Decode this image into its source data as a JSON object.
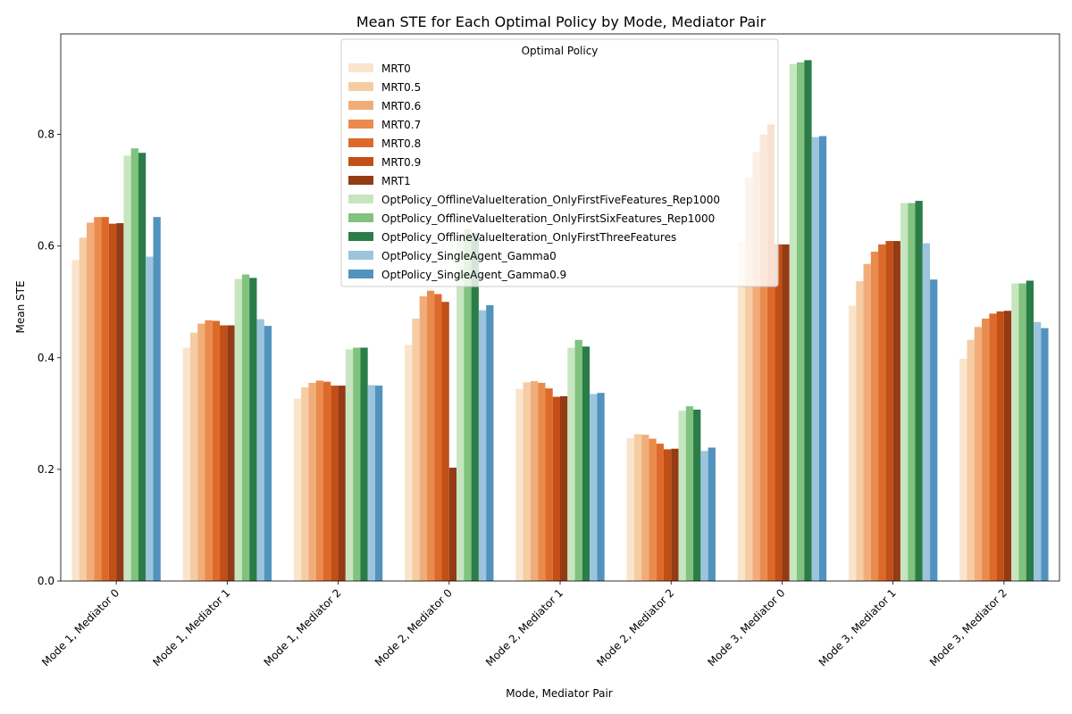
{
  "chart_data": {
    "type": "bar",
    "title": "Mean STE for Each Optimal Policy by Mode, Mediator Pair",
    "xlabel": "Mode, Mediator Pair",
    "ylabel": "Mean STE",
    "ylim": [
      0,
      0.98
    ],
    "yticks": [
      0.0,
      0.2,
      0.4,
      0.6,
      0.8
    ],
    "ytick_labels": [
      "0.0",
      "0.2",
      "0.4",
      "0.6",
      "0.8"
    ],
    "grid": false,
    "categories": [
      "Mode 1, Mediator 0",
      "Mode 1, Mediator 1",
      "Mode 1, Mediator 2",
      "Mode 2, Mediator 0",
      "Mode 2, Mediator 1",
      "Mode 2, Mediator 2",
      "Mode 3, Mediator 0",
      "Mode 3, Mediator 1",
      "Mode 3, Mediator 2"
    ],
    "legend": {
      "title": "Optimal Policy",
      "position": "upper center"
    },
    "series": [
      {
        "name": "MRT0",
        "color": "#fbe4cc",
        "values": [
          0.575,
          0.418,
          0.327,
          0.423,
          0.344,
          0.256,
          0.607,
          0.493,
          0.398
        ]
      },
      {
        "name": "MRT0.5",
        "color": "#f6cca3",
        "values": [
          0.615,
          0.445,
          0.347,
          0.47,
          0.356,
          0.263,
          0.723,
          0.537,
          0.432
        ]
      },
      {
        "name": "MRT0.6",
        "color": "#f1ad79",
        "values": [
          0.642,
          0.461,
          0.355,
          0.51,
          0.358,
          0.262,
          0.768,
          0.568,
          0.455
        ]
      },
      {
        "name": "MRT0.7",
        "color": "#ea8b4e",
        "values": [
          0.652,
          0.467,
          0.359,
          0.52,
          0.355,
          0.255,
          0.8,
          0.59,
          0.47
        ]
      },
      {
        "name": "MRT0.8",
        "color": "#dd6a2b",
        "values": [
          0.652,
          0.466,
          0.357,
          0.514,
          0.345,
          0.246,
          0.818,
          0.603,
          0.479
        ]
      },
      {
        "name": "MRT0.9",
        "color": "#c24f15",
        "values": [
          0.64,
          0.458,
          0.35,
          0.5,
          0.33,
          0.236,
          0.603,
          0.609,
          0.483
        ]
      },
      {
        "name": "MRT1",
        "color": "#943b16",
        "values": [
          0.641,
          0.458,
          0.35,
          0.203,
          0.331,
          0.237,
          0.603,
          0.609,
          0.484
        ]
      },
      {
        "name": "OptPolicy_OfflineValueIteration_OnlyFirstFiveFeatures_Rep1000",
        "color": "#c7e6c0",
        "values": [
          0.762,
          0.541,
          0.415,
          0.617,
          0.418,
          0.305,
          0.926,
          0.677,
          0.533
        ]
      },
      {
        "name": "OptPolicy_OfflineValueIteration_OnlyFirstSixFeatures_Rep1000",
        "color": "#80c27e",
        "values": [
          0.775,
          0.549,
          0.418,
          0.63,
          0.432,
          0.313,
          0.929,
          0.677,
          0.533
        ]
      },
      {
        "name": "OptPolicy_OfflineValueIteration_OnlyFirstThreeFeatures",
        "color": "#2b7d48",
        "values": [
          0.767,
          0.543,
          0.418,
          0.623,
          0.42,
          0.307,
          0.933,
          0.681,
          0.538
        ]
      },
      {
        "name": "OptPolicy_SingleAgent_Gamma0",
        "color": "#9cc5dd",
        "values": [
          0.581,
          0.469,
          0.351,
          0.485,
          0.335,
          0.233,
          0.795,
          0.605,
          0.464
        ]
      },
      {
        "name": "OptPolicy_SingleAgent_Gamma0.9",
        "color": "#5193be",
        "values": [
          0.652,
          0.457,
          0.35,
          0.494,
          0.337,
          0.239,
          0.797,
          0.54,
          0.453
        ]
      }
    ]
  }
}
